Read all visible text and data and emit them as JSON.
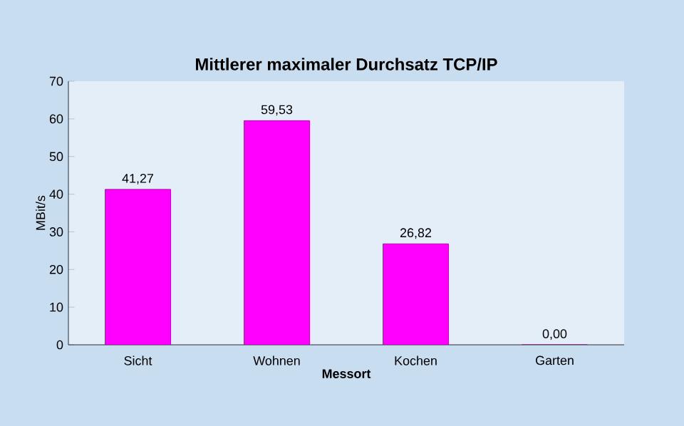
{
  "chart_data": {
    "type": "bar",
    "title": "Mittlerer maximaler Durchsatz TCP/IP",
    "xlabel": "Messort",
    "ylabel": "MBit/s",
    "categories": [
      "Sicht",
      "Wohnen",
      "Kochen",
      "Garten"
    ],
    "values": [
      41.27,
      59.53,
      26.82,
      0.0
    ],
    "value_labels": [
      "41,27",
      "59,53",
      "26,82",
      "0,00"
    ],
    "color": "#ff00ff",
    "ylim": [
      0,
      70
    ],
    "yticks": [
      0,
      10,
      20,
      30,
      40,
      50,
      60,
      70
    ],
    "grid": false
  }
}
